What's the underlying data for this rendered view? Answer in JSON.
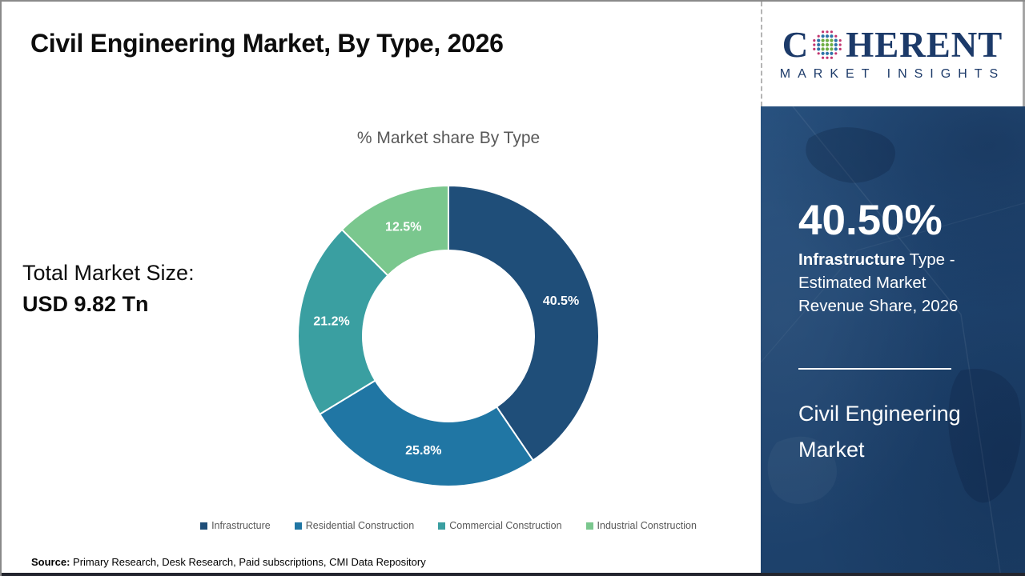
{
  "header": {
    "title": "Civil Engineering Market, By Type, 2026"
  },
  "logo": {
    "word_start": "C",
    "word_end": "HERENT",
    "subtitle": "MARKET INSIGHTS",
    "text_color": "#1c3a69",
    "globe_colors": {
      "center": "#6fae44",
      "middle": "#2e74a8",
      "outer": "#c2356f"
    }
  },
  "market_size": {
    "label": "Total Market Size:",
    "value": "USD 9.82 Tn"
  },
  "chart_data": {
    "type": "pie",
    "donut": true,
    "title": "% Market share By Type",
    "categories": [
      "Infrastructure",
      "Residential Construction",
      "Commercial Construction",
      "Industrial Construction"
    ],
    "values": [
      40.5,
      25.8,
      21.2,
      12.5
    ],
    "labels": [
      "40.5%",
      "25.8%",
      "21.2%",
      "12.5%"
    ],
    "colors": [
      "#1F4E79",
      "#2076A4",
      "#3A9FA1",
      "#7AC78E"
    ],
    "start_angle_deg": 0,
    "direction": "clockwise",
    "legend_position": "bottom",
    "label_color": "#ffffff"
  },
  "sidebar": {
    "stat_value": "40.50%",
    "stat_line1_bold": "Infrastructure",
    "stat_line1_rest": " Type -",
    "stat_line2": "Estimated Market",
    "stat_line3": "Revenue Share, 2026",
    "panel_title_line1": "Civil Engineering",
    "panel_title_line2": "Market",
    "background_color": "#1f4571"
  },
  "footer": {
    "source_label": "Source:",
    "source_text": " Primary Research, Desk Research, Paid subscriptions, CMI Data Repository"
  }
}
